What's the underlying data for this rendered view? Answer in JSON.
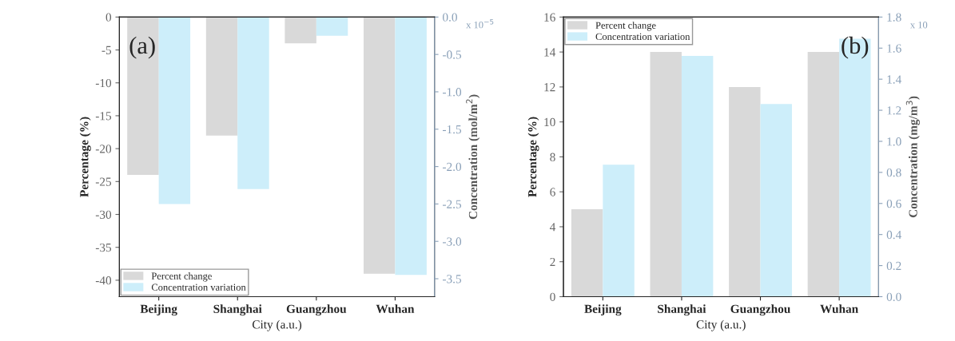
{
  "chart_data": [
    {
      "type": "bar",
      "categories": [
        "Beijing",
        "Shanghai",
        "Guangzhou",
        "Wuhan"
      ],
      "xlabel": "City (a.u.)",
      "ylabel": "Percentage (%)",
      "y2label": "Concentration (mol/m$^{2}$)",
      "series": [
        {
          "name": "Percent change",
          "color": "#d9d9d9",
          "values": [
            -24,
            -18,
            -4,
            -39
          ]
        },
        {
          "name": "Concentration variation",
          "color": "#cdeefa",
          "values": [
            -2.5,
            -2.3,
            -0.25,
            -3.45
          ],
          "axis": "y2"
        }
      ],
      "ylim": [
        -42.5,
        0
      ],
      "yticks": [
        0,
        -5,
        -10,
        -15,
        -20,
        -25,
        -30,
        -35,
        -40
      ],
      "y2lim": [
        -3.74,
        0
      ],
      "y2ticks": [
        {
          "value": 0,
          "label": "0.0"
        },
        {
          "value": -0.5,
          "label": "-0.5"
        },
        {
          "value": -1,
          "label": "-1.0"
        },
        {
          "value": -1.5,
          "label": "-1.5"
        },
        {
          "value": -2,
          "label": "-2.0"
        },
        {
          "value": -2.5,
          "label": "-2.5"
        },
        {
          "value": -3,
          "label": "-3.0"
        },
        {
          "value": -3.5,
          "label": "-3.5"
        }
      ],
      "annotations": [
        "(a)",
        "x 10$^{−5}$"
      ],
      "legend": "bottom left",
      "grid": false
    },
    {
      "type": "bar",
      "categories": [
        "Beijing",
        "Shanghai",
        "Guangzhou",
        "Wuhan"
      ],
      "xlabel": "City (a.u.)",
      "ylabel": "Percentage (%)",
      "y2label": "Concentration (mg/m$^{3}$)",
      "series": [
        {
          "name": "Percent change",
          "color": "#d9d9d9",
          "values": [
            5,
            14,
            12,
            14
          ]
        },
        {
          "name": "Concentration variation",
          "color": "#cdeefa",
          "values": [
            0.85,
            1.55,
            1.24,
            1.66
          ],
          "axis": "y2"
        }
      ],
      "ylim": [
        0,
        16
      ],
      "yticks": [
        0,
        2,
        4,
        6,
        8,
        10,
        12,
        14,
        16
      ],
      "y2lim": [
        0,
        1.8
      ],
      "y2ticks": [
        {
          "value": 0,
          "label": "0.0"
        },
        {
          "value": 0.2,
          "label": "0.2"
        },
        {
          "value": 0.4,
          "label": "0.4"
        },
        {
          "value": 0.6,
          "label": "0.6"
        },
        {
          "value": 0.8,
          "label": "0.8"
        },
        {
          "value": 1,
          "label": "1.0"
        },
        {
          "value": 1.2,
          "label": "1.2"
        },
        {
          "value": 1.4,
          "label": "1.4"
        },
        {
          "value": 1.6,
          "label": "1.6"
        },
        {
          "value": 1.8,
          "label": "1.8"
        }
      ],
      "annotations": [
        "(b)",
        "x 10"
      ],
      "legend": "top left",
      "grid": false
    }
  ]
}
